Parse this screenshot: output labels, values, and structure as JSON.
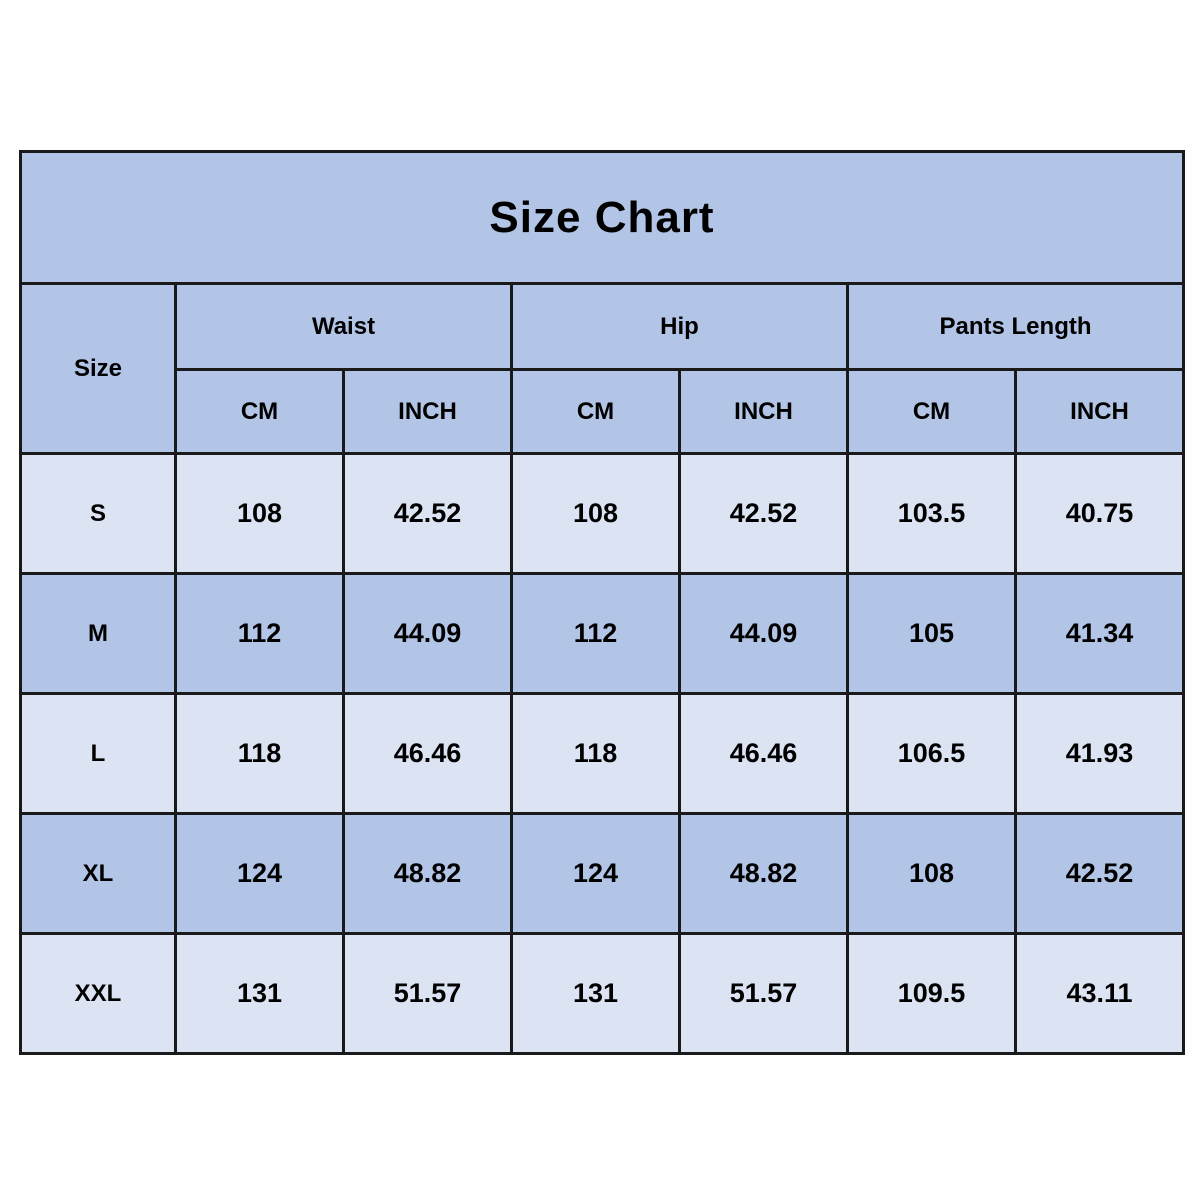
{
  "title": "Size Chart",
  "colors": {
    "header-blue": "#b2c5e6",
    "row-light": "#dce3f2",
    "row-dark": "#b2c5e6",
    "border-dark": "#1a1a1a",
    "page-bg": "#ffffff",
    "text": "#000000"
  },
  "table": {
    "size_col_header": "Size",
    "groups": [
      {
        "label": "Waist"
      },
      {
        "label": "Hip"
      },
      {
        "label": "Pants Length"
      }
    ],
    "unit_headers": [
      "CM",
      "INCH",
      "CM",
      "INCH",
      "CM",
      "INCH"
    ],
    "rows": [
      {
        "size": "S",
        "cells": [
          "108",
          "42.52",
          "108",
          "42.52",
          "103.5",
          "40.75"
        ]
      },
      {
        "size": "M",
        "cells": [
          "112",
          "44.09",
          "112",
          "44.09",
          "105",
          "41.34"
        ]
      },
      {
        "size": "L",
        "cells": [
          "118",
          "46.46",
          "118",
          "46.46",
          "106.5",
          "41.93"
        ]
      },
      {
        "size": "XL",
        "cells": [
          "124",
          "48.82",
          "124",
          "48.82",
          "108",
          "42.52"
        ]
      },
      {
        "size": "XXL",
        "cells": [
          "131",
          "51.57",
          "131",
          "51.57",
          "109.5",
          "43.11"
        ]
      }
    ]
  },
  "chart_data": {
    "type": "table",
    "title": "Size Chart",
    "columns": [
      "Size",
      "Waist CM",
      "Waist INCH",
      "Hip CM",
      "Hip INCH",
      "Pants Length CM",
      "Pants Length INCH"
    ],
    "rows": [
      [
        "S",
        108,
        42.52,
        108,
        42.52,
        103.5,
        40.75
      ],
      [
        "M",
        112,
        44.09,
        112,
        44.09,
        105,
        41.34
      ],
      [
        "L",
        118,
        46.46,
        118,
        46.46,
        106.5,
        41.93
      ],
      [
        "XL",
        124,
        48.82,
        124,
        48.82,
        108,
        42.52
      ],
      [
        "XXL",
        131,
        51.57,
        131,
        51.57,
        109.5,
        43.11
      ]
    ],
    "layout": {
      "header_fill": "#b2c5e6",
      "alternating_row_fills": [
        "#dce3f2",
        "#b2c5e6"
      ],
      "grid": true
    }
  }
}
